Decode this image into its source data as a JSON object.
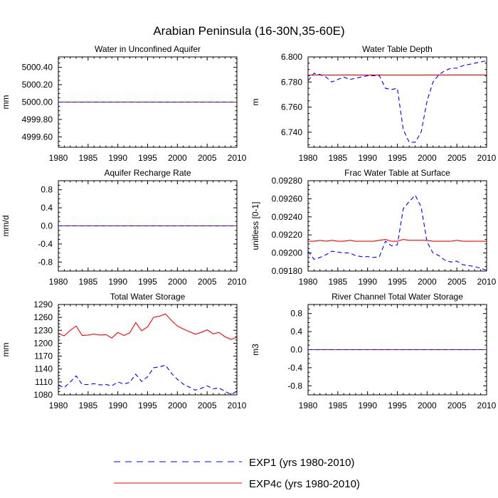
{
  "figure": {
    "title": "Arabian Peninsula (16-30N,35-60E)"
  },
  "colors": {
    "exp1": "#0000ff",
    "exp4c": "#ff0000",
    "axis": "#000000"
  },
  "legend": [
    {
      "label": "EXP1 (yrs 1980-2010)",
      "color": "#0000ff",
      "dash": true
    },
    {
      "label": "EXP4c (yrs 1980-2010)",
      "color": "#ff0000",
      "dash": false
    }
  ],
  "chart_data": [
    {
      "type": "line",
      "title": "Water in Unconfined Aquifer",
      "ylabel": "mm",
      "xlim": [
        1980,
        2010
      ],
      "ylim": [
        4999.48,
        5000.52
      ],
      "xticks": [
        1980,
        1985,
        1990,
        1995,
        2000,
        2005,
        2010
      ],
      "yticks": [
        4999.6,
        4999.8,
        5000.0,
        5000.2,
        5000.4
      ],
      "ytick_labels": [
        "4999.60",
        "4999.80",
        "5000.00",
        "5000.20",
        "5000.40"
      ],
      "x": [
        1980,
        2010
      ],
      "series": [
        {
          "name": "EXP1",
          "values": [
            5000.0,
            5000.0
          ]
        },
        {
          "name": "EXP4c",
          "values": [
            5000.0,
            5000.0
          ]
        }
      ]
    },
    {
      "type": "line",
      "title": "Water Table Depth",
      "ylabel": "m",
      "xlim": [
        1980,
        2010
      ],
      "ylim": [
        6.728,
        6.8
      ],
      "xticks": [
        1980,
        1985,
        1990,
        1995,
        2000,
        2005,
        2010
      ],
      "yticks": [
        6.74,
        6.76,
        6.78,
        6.8
      ],
      "ytick_labels": [
        "6.740",
        "6.760",
        "6.780",
        "6.800"
      ],
      "x": [
        1980,
        1981,
        1982,
        1983,
        1984,
        1985,
        1986,
        1987,
        1988,
        1989,
        1990,
        1991,
        1992,
        1993,
        1994,
        1995,
        1996,
        1997,
        1998,
        1999,
        2000,
        2001,
        2002,
        2003,
        2004,
        2005,
        2006,
        2007,
        2008,
        2009,
        2010
      ],
      "series": [
        {
          "name": "EXP1",
          "values": [
            6.781,
            6.787,
            6.786,
            6.784,
            6.78,
            6.782,
            6.784,
            6.782,
            6.783,
            6.784,
            6.785,
            6.785,
            6.785,
            6.775,
            6.774,
            6.775,
            6.742,
            6.732,
            6.732,
            6.74,
            6.765,
            6.78,
            6.786,
            6.789,
            6.791,
            6.791,
            6.793,
            6.794,
            6.795,
            6.796,
            6.797
          ]
        },
        {
          "name": "EXP4c",
          "values": [
            6.7855,
            6.7856,
            6.7856,
            6.7855,
            6.7855,
            6.7855,
            6.7856,
            6.7856,
            6.7855,
            6.7855,
            6.7855,
            6.7856,
            6.7856,
            6.7855,
            6.7855,
            6.7855,
            6.7855,
            6.7855,
            6.7855,
            6.7855,
            6.7856,
            6.7856,
            6.7856,
            6.7856,
            6.7856,
            6.7856,
            6.7856,
            6.7856,
            6.7856,
            6.7856,
            6.7856
          ]
        }
      ]
    },
    {
      "type": "line",
      "title": "Aquifer Recharge Rate",
      "ylabel": "mm/d",
      "xlim": [
        1980,
        2010
      ],
      "ylim": [
        -1.0,
        1.0
      ],
      "xticks": [
        1980,
        1985,
        1990,
        1995,
        2000,
        2005,
        2010
      ],
      "yticks": [
        -0.8,
        -0.4,
        0.0,
        0.4,
        0.8
      ],
      "ytick_labels": [
        "-0.8",
        "-0.4",
        "0.0",
        "0.4",
        "0.8"
      ],
      "x": [
        1980,
        2010
      ],
      "series": [
        {
          "name": "EXP1",
          "values": [
            0.0,
            0.0
          ]
        },
        {
          "name": "EXP4c",
          "values": [
            0.0,
            0.0
          ]
        }
      ]
    },
    {
      "type": "line",
      "title": "Frac Water Table at Surface",
      "ylabel": "unitless [0-1]",
      "xlim": [
        1980,
        2010
      ],
      "ylim": [
        0.0918,
        0.0928
      ],
      "xticks": [
        1980,
        1985,
        1990,
        1995,
        2000,
        2005,
        2010
      ],
      "yticks": [
        0.0918,
        0.092,
        0.0922,
        0.0924,
        0.0926,
        0.0928
      ],
      "ytick_labels": [
        "0.09180",
        "0.09200",
        "0.09220",
        "0.09240",
        "0.09260",
        "0.09280"
      ],
      "x": [
        1980,
        1981,
        1982,
        1983,
        1984,
        1985,
        1986,
        1987,
        1988,
        1989,
        1990,
        1991,
        1992,
        1993,
        1994,
        1995,
        1996,
        1997,
        1998,
        1999,
        2000,
        2001,
        2002,
        2003,
        2004,
        2005,
        2006,
        2007,
        2008,
        2009,
        2010
      ],
      "series": [
        {
          "name": "EXP1",
          "values": [
            0.09202,
            0.09193,
            0.09195,
            0.09198,
            0.09202,
            0.09201,
            0.092,
            0.092,
            0.09197,
            0.09196,
            0.09196,
            0.09195,
            0.09196,
            0.09213,
            0.09208,
            0.09209,
            0.09249,
            0.09257,
            0.09264,
            0.09251,
            0.09212,
            0.092,
            0.09197,
            0.09192,
            0.0919,
            0.09191,
            0.09187,
            0.09186,
            0.09185,
            0.09183,
            0.09181
          ]
        },
        {
          "name": "EXP4c",
          "values": [
            0.09213,
            0.09213,
            0.09214,
            0.09213,
            0.09214,
            0.09213,
            0.09213,
            0.09214,
            0.09213,
            0.09213,
            0.09213,
            0.09213,
            0.09214,
            0.09215,
            0.09213,
            0.09213,
            0.09215,
            0.09214,
            0.09214,
            0.09214,
            0.09214,
            0.09213,
            0.09213,
            0.09213,
            0.09213,
            0.09214,
            0.09213,
            0.09213,
            0.09213,
            0.09213,
            0.09213
          ]
        }
      ]
    },
    {
      "type": "line",
      "title": "Total Water Storage",
      "ylabel": "mm",
      "xlim": [
        1980,
        2010
      ],
      "ylim": [
        1080,
        1290
      ],
      "xticks": [
        1980,
        1985,
        1990,
        1995,
        2000,
        2005,
        2010
      ],
      "yticks": [
        1080,
        1110,
        1140,
        1170,
        1200,
        1230,
        1260,
        1290
      ],
      "ytick_labels": [
        "1080",
        "1110",
        "1140",
        "1170",
        "1200",
        "1230",
        "1260",
        "1290"
      ],
      "x": [
        1980,
        1981,
        1982,
        1983,
        1984,
        1985,
        1986,
        1987,
        1988,
        1989,
        1990,
        1991,
        1992,
        1993,
        1994,
        1995,
        1996,
        1997,
        1998,
        1999,
        2000,
        2001,
        2002,
        2003,
        2004,
        2005,
        2006,
        2007,
        2008,
        2009,
        2010
      ],
      "series": [
        {
          "name": "EXP1",
          "values": [
            1102,
            1097,
            1110,
            1124,
            1104,
            1104,
            1106,
            1103,
            1104,
            1101,
            1110,
            1105,
            1109,
            1128,
            1111,
            1122,
            1143,
            1145,
            1149,
            1130,
            1116,
            1105,
            1098,
            1091,
            1095,
            1101,
            1094,
            1096,
            1088,
            1081,
            1088
          ]
        },
        {
          "name": "EXP4c",
          "values": [
            1222,
            1217,
            1230,
            1240,
            1218,
            1219,
            1221,
            1219,
            1220,
            1212,
            1225,
            1218,
            1224,
            1248,
            1229,
            1238,
            1260,
            1263,
            1268,
            1253,
            1240,
            1233,
            1227,
            1221,
            1225,
            1231,
            1222,
            1225,
            1215,
            1209,
            1214
          ]
        }
      ]
    },
    {
      "type": "line",
      "title": "River Channel Total Water Storage",
      "ylabel": "m3",
      "xlim": [
        1980,
        2010
      ],
      "ylim": [
        -1.0,
        1.0
      ],
      "xticks": [
        1980,
        1985,
        1990,
        1995,
        2000,
        2005,
        2010
      ],
      "yticks": [
        -0.8,
        -0.4,
        0.0,
        0.4,
        0.8
      ],
      "ytick_labels": [
        "-0.8",
        "-0.4",
        "0.0",
        "0.4",
        "0.8"
      ],
      "x": [
        1980,
        2010
      ],
      "series": [
        {
          "name": "EXP1",
          "values": [
            0.0,
            0.0
          ]
        },
        {
          "name": "EXP4c",
          "values": [
            0.0,
            0.0
          ]
        }
      ]
    }
  ]
}
